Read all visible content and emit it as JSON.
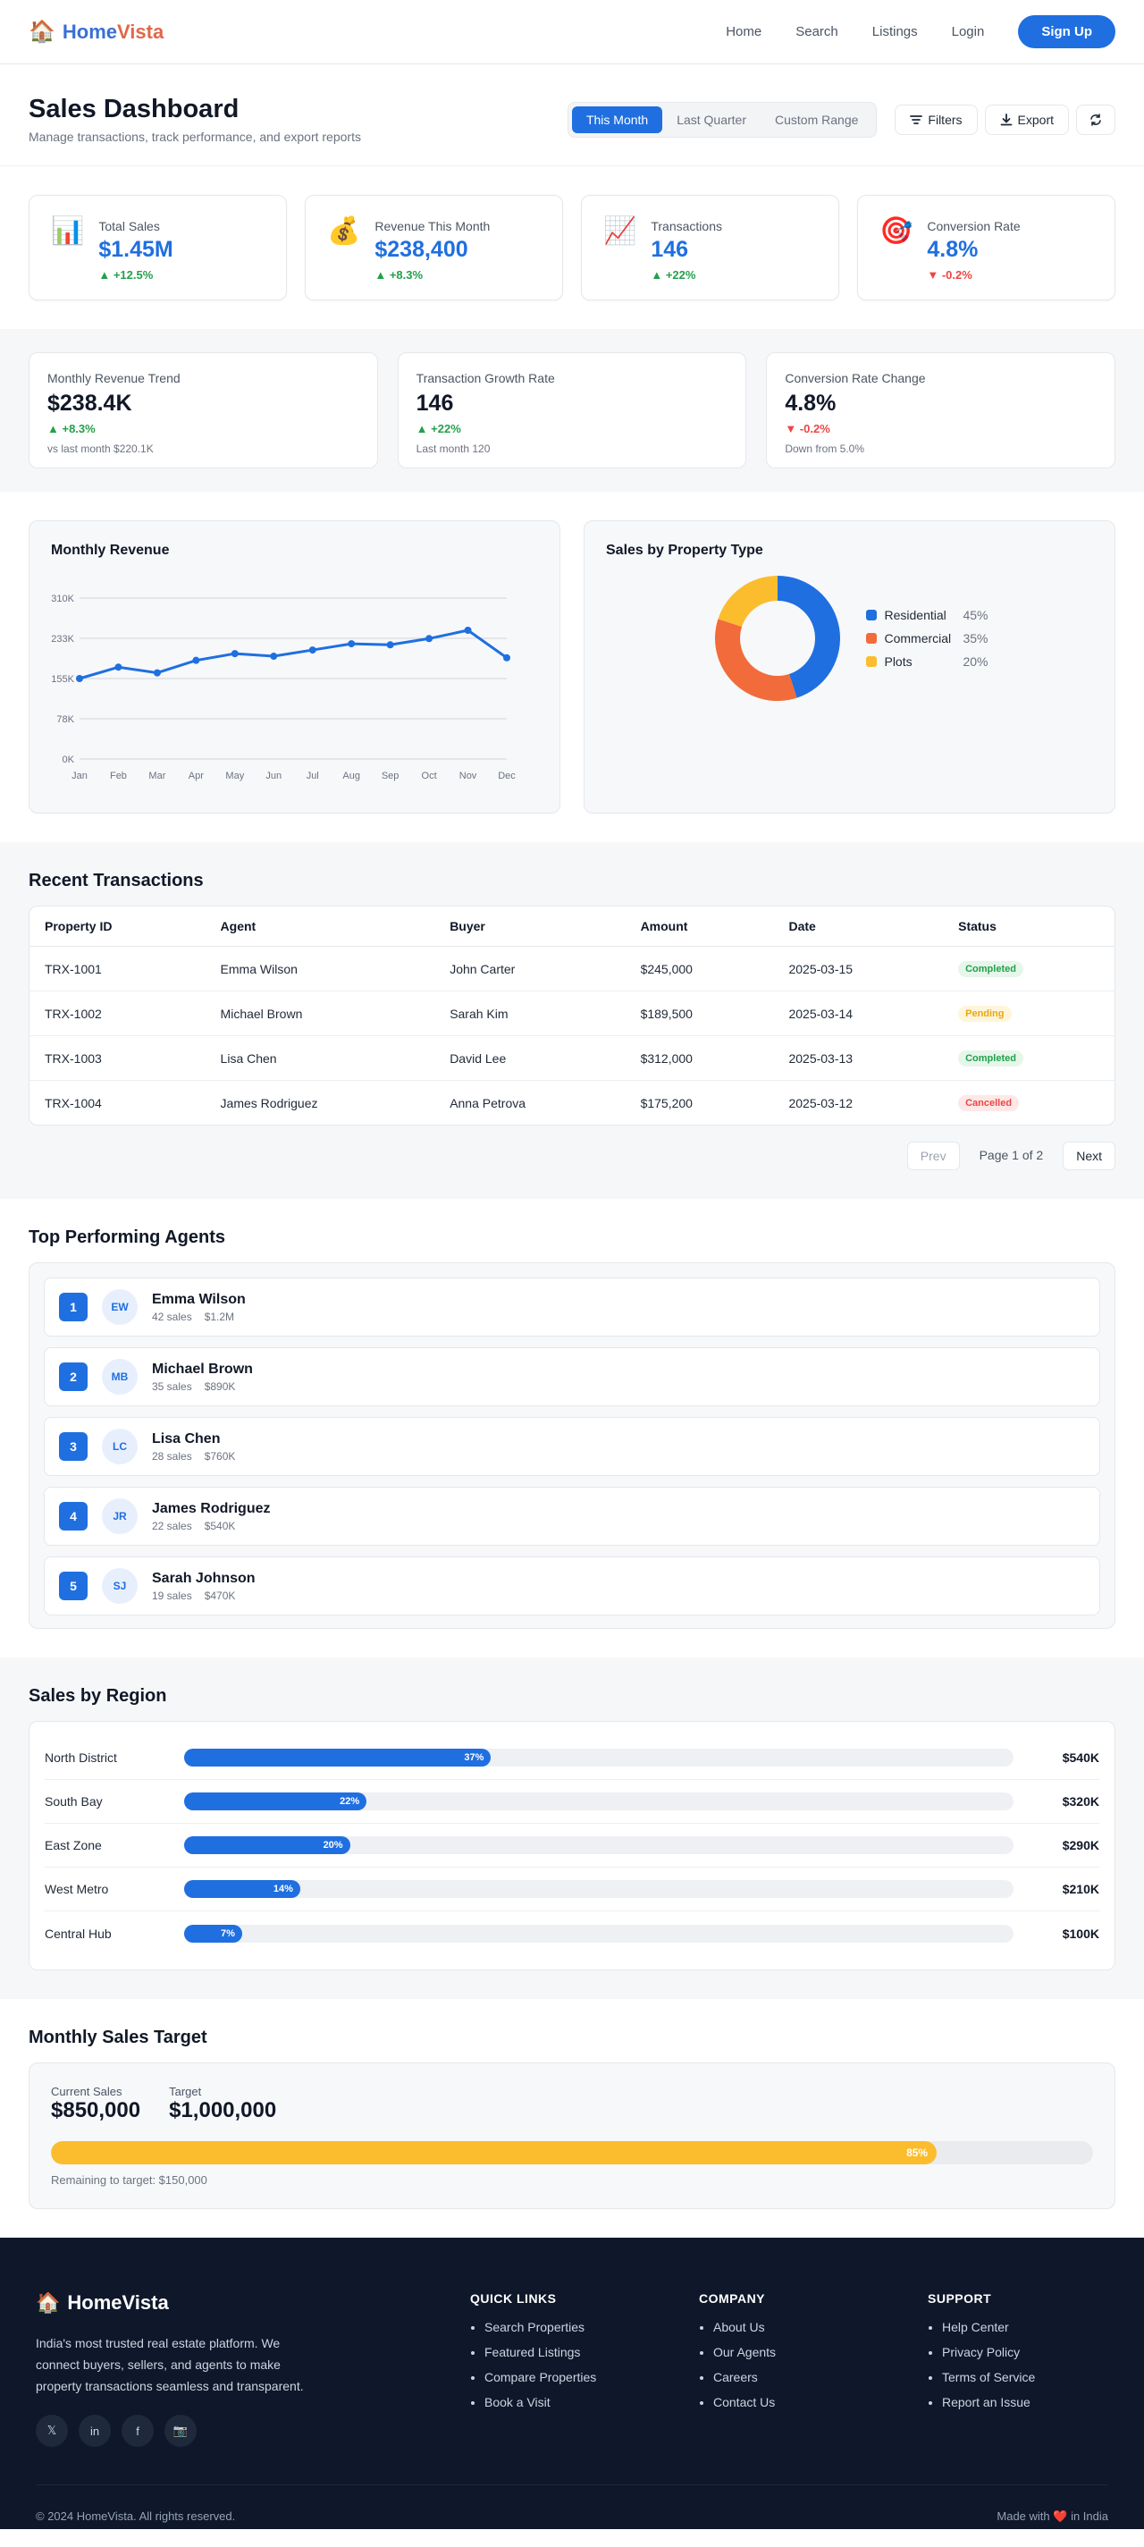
{
  "nav": {
    "logo_part1": "Home",
    "logo_part2": "Vista",
    "links": [
      "Home",
      "Search",
      "Listings",
      "Login"
    ],
    "signup": "Sign Up"
  },
  "header": {
    "title": "Sales Dashboard",
    "subtitle": "Manage transactions, track performance, and export reports",
    "ranges": [
      "This Month",
      "Last Quarter",
      "Custom Range"
    ],
    "active_range": "This Month",
    "filters": "Filters",
    "export": "Export"
  },
  "stats": [
    {
      "icon": "bar-chart-icon",
      "glyph": "📊",
      "label": "Total Sales",
      "value": "$1.45M",
      "change": "+12.5%",
      "dir": "up"
    },
    {
      "icon": "money-bag-icon",
      "glyph": "💰",
      "label": "Revenue This Month",
      "value": "$238,400",
      "change": "+8.3%",
      "dir": "up"
    },
    {
      "icon": "trend-up-icon",
      "glyph": "📈",
      "label": "Transactions",
      "value": "146",
      "change": "+22%",
      "dir": "up"
    },
    {
      "icon": "target-icon",
      "glyph": "🎯",
      "label": "Conversion Rate",
      "value": "4.8%",
      "change": "-0.2%",
      "dir": "down"
    }
  ],
  "metrics": [
    {
      "label": "Monthly Revenue Trend",
      "value": "$238.4K",
      "change": "+8.3%",
      "dir": "up",
      "note": "vs last month $220.1K"
    },
    {
      "label": "Transaction Growth Rate",
      "value": "146",
      "change": "+22%",
      "dir": "up",
      "note": "Last month 120"
    },
    {
      "label": "Conversion Rate Change",
      "value": "4.8%",
      "change": "-0.2%",
      "dir": "down",
      "note": "Down from 5.0%"
    }
  ],
  "chart_data": [
    {
      "type": "line",
      "title": "Monthly Revenue",
      "categories": [
        "Jan",
        "Feb",
        "Mar",
        "Apr",
        "May",
        "Jun",
        "Jul",
        "Aug",
        "Sep",
        "Oct",
        "Nov",
        "Dec"
      ],
      "values": [
        155,
        177,
        166,
        190,
        203,
        198,
        210,
        222,
        220,
        232,
        248,
        195
      ],
      "y_ticks": [
        "0K",
        "78K",
        "155K",
        "233K",
        "310K"
      ],
      "ylim": [
        0,
        310
      ],
      "grid": true,
      "color": "#1f6fe0"
    },
    {
      "type": "pie",
      "title": "Sales by Property Type",
      "slices": [
        {
          "name": "Residential",
          "value": 45,
          "label": "45%",
          "color": "#1f6fe0"
        },
        {
          "name": "Commercial",
          "value": 35,
          "label": "35%",
          "color": "#f26b3a"
        },
        {
          "name": "Plots",
          "value": 20,
          "label": "20%",
          "color": "#fbbd2e"
        }
      ],
      "legend": "right"
    }
  ],
  "transactions": {
    "title": "Recent Transactions",
    "columns": [
      "Property ID",
      "Agent",
      "Buyer",
      "Amount",
      "Date",
      "Status"
    ],
    "rows": [
      {
        "id": "TRX-1001",
        "agent": "Emma Wilson",
        "buyer": "John Carter",
        "amount": "$245,000",
        "date": "2025-03-15",
        "status": "Completed"
      },
      {
        "id": "TRX-1002",
        "agent": "Michael Brown",
        "buyer": "Sarah Kim",
        "amount": "$189,500",
        "date": "2025-03-14",
        "status": "Pending"
      },
      {
        "id": "TRX-1003",
        "agent": "Lisa Chen",
        "buyer": "David Lee",
        "amount": "$312,000",
        "date": "2025-03-13",
        "status": "Completed"
      },
      {
        "id": "TRX-1004",
        "agent": "James Rodriguez",
        "buyer": "Anna Petrova",
        "amount": "$175,200",
        "date": "2025-03-12",
        "status": "Cancelled"
      }
    ],
    "pager": {
      "prev": "Prev",
      "info": "Page 1 of 2",
      "next": "Next"
    }
  },
  "agents": {
    "title": "Top Performing Agents",
    "list": [
      {
        "rank": "1",
        "initials": "EW",
        "name": "Emma Wilson",
        "sales": "42 sales",
        "amount": "$1.2M"
      },
      {
        "rank": "2",
        "initials": "MB",
        "name": "Michael Brown",
        "sales": "35 sales",
        "amount": "$890K"
      },
      {
        "rank": "3",
        "initials": "LC",
        "name": "Lisa Chen",
        "sales": "28 sales",
        "amount": "$760K"
      },
      {
        "rank": "4",
        "initials": "JR",
        "name": "James Rodriguez",
        "sales": "22 sales",
        "amount": "$540K"
      },
      {
        "rank": "5",
        "initials": "SJ",
        "name": "Sarah Johnson",
        "sales": "19 sales",
        "amount": "$470K"
      }
    ]
  },
  "regions": {
    "title": "Sales by Region",
    "list": [
      {
        "name": "North District",
        "pct": 37,
        "pct_label": "37%",
        "value": "$540K"
      },
      {
        "name": "South Bay",
        "pct": 22,
        "pct_label": "22%",
        "value": "$320K"
      },
      {
        "name": "East Zone",
        "pct": 20,
        "pct_label": "20%",
        "value": "$290K"
      },
      {
        "name": "West Metro",
        "pct": 14,
        "pct_label": "14%",
        "value": "$210K"
      },
      {
        "name": "Central Hub",
        "pct": 7,
        "pct_label": "7%",
        "value": "$100K"
      }
    ]
  },
  "target": {
    "title": "Monthly Sales Target",
    "current_label": "Current Sales",
    "current_value": "$850,000",
    "target_label": "Target",
    "target_value": "$1,000,000",
    "progress": 85,
    "progress_label": "85%",
    "remaining": "Remaining to target: $150,000"
  },
  "footer": {
    "brand": "HomeVista",
    "description": "India's most trusted real estate platform. We connect buyers, sellers, and agents to make property transactions seamless and transparent.",
    "social": [
      {
        "icon": "x-icon",
        "glyph": "𝕏"
      },
      {
        "icon": "linkedin-icon",
        "glyph": "in"
      },
      {
        "icon": "facebook-icon",
        "glyph": "f"
      },
      {
        "icon": "instagram-icon",
        "glyph": "📷"
      }
    ],
    "columns": [
      {
        "title": "QUICK LINKS",
        "links": [
          "Search Properties",
          "Featured Listings",
          "Compare Properties",
          "Book a Visit"
        ]
      },
      {
        "title": "COMPANY",
        "links": [
          "About Us",
          "Our Agents",
          "Careers",
          "Contact Us"
        ]
      },
      {
        "title": "SUPPORT",
        "links": [
          "Help Center",
          "Privacy Policy",
          "Terms of Service",
          "Report an Issue"
        ]
      }
    ],
    "copyright": "© 2024 HomeVista. All rights reserved.",
    "made_prefix": "Made with",
    "made_suffix": "in India"
  }
}
